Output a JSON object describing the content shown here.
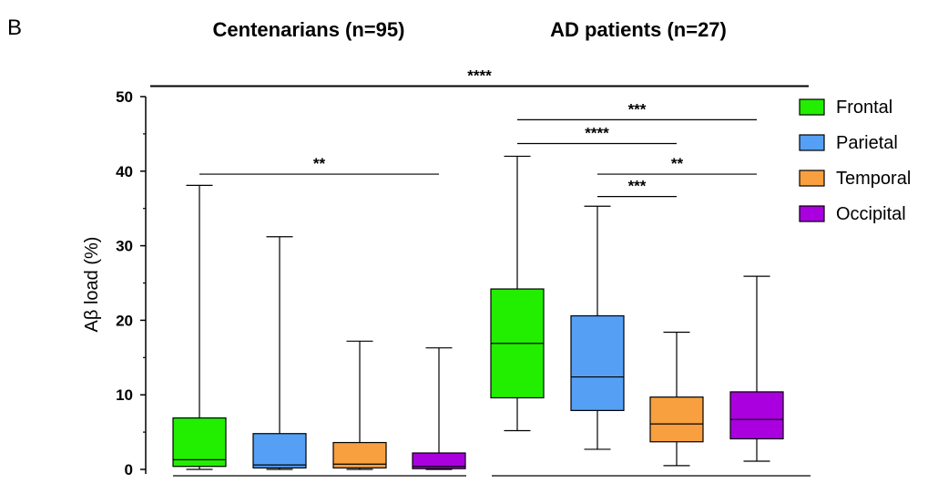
{
  "panel_label": "B",
  "chart_data": {
    "type": "box",
    "ylabel": "Aβ load (%)",
    "ylim": [
      0,
      50
    ],
    "yticks": [
      "0",
      "10",
      "20",
      "30",
      "40",
      "50"
    ],
    "groups": [
      {
        "title": "Centenarians (n=95)",
        "boxes": [
          {
            "region": "Frontal",
            "min": 0.0,
            "q1": 0.4,
            "median": 1.3,
            "q3": 6.9,
            "max": 38.1
          },
          {
            "region": "Parietal",
            "min": 0.0,
            "q1": 0.2,
            "median": 0.6,
            "q3": 4.8,
            "max": 31.2
          },
          {
            "region": "Temporal",
            "min": 0.0,
            "q1": 0.2,
            "median": 0.7,
            "q3": 3.6,
            "max": 17.2
          },
          {
            "region": "Occipital",
            "min": 0.0,
            "q1": 0.1,
            "median": 0.4,
            "q3": 2.2,
            "max": 16.3
          }
        ]
      },
      {
        "title": "AD patients (n=27)",
        "boxes": [
          {
            "region": "Frontal",
            "min": 5.2,
            "q1": 9.6,
            "median": 16.9,
            "q3": 24.2,
            "max": 42.0
          },
          {
            "region": "Parietal",
            "min": 2.7,
            "q1": 7.9,
            "median": 12.4,
            "q3": 20.6,
            "max": 35.3
          },
          {
            "region": "Temporal",
            "min": 0.5,
            "q1": 3.7,
            "median": 6.1,
            "q3": 9.7,
            "max": 18.4
          },
          {
            "region": "Occipital",
            "min": 1.1,
            "q1": 4.1,
            "median": 6.7,
            "q3": 10.4,
            "max": 25.9
          }
        ]
      }
    ],
    "legend": {
      "placement": "right",
      "entries": [
        {
          "label": "Frontal",
          "color": "#22ee00"
        },
        {
          "label": "Parietal",
          "color": "#55a0f5"
        },
        {
          "label": "Temporal",
          "color": "#f8a040"
        },
        {
          "label": "Occipital",
          "color": "#aa00e0"
        }
      ]
    },
    "significance": [
      {
        "label": "****",
        "from": [
          0,
          0
        ],
        "to": [
          1,
          3
        ],
        "y": 51.4
      },
      {
        "label": "**",
        "from": [
          0,
          0
        ],
        "to": [
          0,
          3
        ],
        "y": 39.6
      },
      {
        "label": "***",
        "from": [
          1,
          0
        ],
        "to": [
          1,
          3
        ],
        "y": 46.9
      },
      {
        "label": "****",
        "from": [
          1,
          0
        ],
        "to": [
          1,
          2
        ],
        "y": 43.7
      },
      {
        "label": "**",
        "from": [
          1,
          1
        ],
        "to": [
          1,
          3
        ],
        "y": 39.6
      },
      {
        "label": "***",
        "from": [
          1,
          1
        ],
        "to": [
          1,
          2
        ],
        "y": 36.6
      }
    ]
  }
}
